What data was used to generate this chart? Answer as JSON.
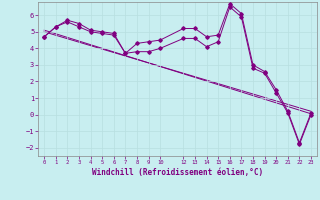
{
  "xlabel": "Windchill (Refroidissement éolien,°C)",
  "bg_color": "#c8eef0",
  "line_color": "#800080",
  "grid_color": "#b8dfe0",
  "ylim": [
    -2.5,
    6.8
  ],
  "xlim": [
    -0.5,
    23.5
  ],
  "yticks": [
    -2,
    -1,
    0,
    1,
    2,
    3,
    4,
    5,
    6
  ],
  "xtick_positions": [
    0,
    1,
    2,
    3,
    4,
    5,
    6,
    7,
    8,
    9,
    10,
    12,
    13,
    14,
    15,
    16,
    17,
    18,
    19,
    20,
    21,
    22,
    23
  ],
  "xtick_labels": [
    "0",
    "1",
    "2",
    "3",
    "4",
    "5",
    "6",
    "7",
    "8",
    "9",
    "10",
    "12",
    "13",
    "14",
    "15",
    "16",
    "17",
    "18",
    "19",
    "20",
    "21",
    "22",
    "23"
  ],
  "series1_x": [
    0,
    1,
    2,
    3,
    4,
    5,
    6,
    7,
    8,
    9,
    10,
    12,
    13,
    14,
    15,
    16,
    17,
    18,
    19,
    20,
    21,
    22,
    23
  ],
  "series1_y": [
    4.7,
    5.3,
    5.7,
    5.5,
    5.1,
    5.0,
    4.9,
    3.7,
    4.3,
    4.4,
    4.5,
    5.2,
    5.2,
    4.7,
    4.8,
    6.7,
    6.1,
    3.0,
    2.6,
    1.5,
    0.2,
    -1.7,
    0.1
  ],
  "series2_x": [
    0,
    1,
    2,
    3,
    4,
    5,
    6,
    7,
    8,
    9,
    10,
    12,
    13,
    14,
    15,
    16,
    17,
    18,
    19,
    20,
    21,
    22,
    23
  ],
  "series2_y": [
    4.7,
    5.3,
    5.6,
    5.3,
    5.0,
    4.9,
    4.8,
    3.7,
    3.8,
    3.8,
    4.0,
    4.6,
    4.6,
    4.1,
    4.4,
    6.5,
    5.9,
    2.8,
    2.5,
    1.3,
    0.1,
    -1.8,
    0.0
  ],
  "trend1_x": [
    0,
    23
  ],
  "trend1_y": [
    5.1,
    0.05
  ],
  "trend2_x": [
    0,
    23
  ],
  "trend2_y": [
    5.0,
    0.2
  ]
}
